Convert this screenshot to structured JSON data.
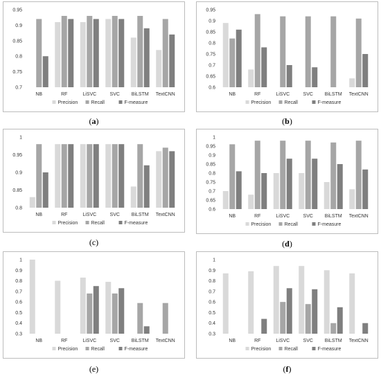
{
  "series_names": [
    "Precision",
    "Recall",
    "F-measure"
  ],
  "colors": [
    "#d9d9d9",
    "#a6a6a6",
    "#7f7f7f"
  ],
  "chart_data": [
    {
      "type": "bar",
      "label": "(a)",
      "categories": [
        "NB",
        "RF",
        "LiSVC",
        "SVC",
        "BiLSTM",
        "TextCNN"
      ],
      "ylim": [
        0.7,
        0.95
      ],
      "yticks": [
        0.7,
        0.75,
        0.8,
        0.85,
        0.9,
        0.95
      ],
      "legend": "bottom",
      "series": [
        {
          "name": "Precision",
          "values": [
            0.7,
            0.91,
            0.91,
            0.92,
            0.86,
            0.82
          ]
        },
        {
          "name": "Recall",
          "values": [
            0.92,
            0.93,
            0.93,
            0.93,
            0.93,
            0.92
          ]
        },
        {
          "name": "F-measure",
          "values": [
            0.8,
            0.92,
            0.92,
            0.92,
            0.89,
            0.87
          ]
        }
      ]
    },
    {
      "type": "bar",
      "label": "(b)",
      "categories": [
        "NB",
        "RF",
        "LiSVC",
        "SVC",
        "BiLSTM",
        "TextCNN"
      ],
      "ylim": [
        0.6,
        0.95
      ],
      "yticks": [
        0.6,
        0.65,
        0.7,
        0.75,
        0.8,
        0.85,
        0.9,
        0.95
      ],
      "legend": "bottom",
      "series": [
        {
          "name": "Precision",
          "values": [
            0.89,
            0.68,
            0.6,
            0.6,
            0.6,
            0.64
          ]
        },
        {
          "name": "Recall",
          "values": [
            0.82,
            0.93,
            0.92,
            0.92,
            0.92,
            0.91
          ]
        },
        {
          "name": "F-measure",
          "values": [
            0.86,
            0.78,
            0.7,
            0.69,
            0.6,
            0.75
          ]
        }
      ]
    },
    {
      "type": "bar",
      "label": "(c)",
      "categories": [
        "NB",
        "RF",
        "LiSVC",
        "SVC",
        "BiLSTM",
        "TextCNN"
      ],
      "ylim": [
        0.8,
        1.0
      ],
      "yticks": [
        0.8,
        0.85,
        0.9,
        0.95,
        1
      ],
      "legend": "bottom",
      "series": [
        {
          "name": "Precision",
          "values": [
            0.83,
            0.98,
            0.98,
            0.98,
            0.86,
            0.96
          ]
        },
        {
          "name": "Recall",
          "values": [
            0.98,
            0.98,
            0.98,
            0.98,
            0.98,
            0.97
          ]
        },
        {
          "name": "F-measure",
          "values": [
            0.9,
            0.98,
            0.98,
            0.98,
            0.92,
            0.96
          ]
        }
      ]
    },
    {
      "type": "bar",
      "label": "(d)",
      "categories": [
        "NB",
        "RF",
        "LiSVC",
        "SVC",
        "BiLSTM",
        "TextCNN"
      ],
      "ylim": [
        0.6,
        1.0
      ],
      "yticks": [
        0.6,
        0.65,
        0.7,
        0.75,
        0.8,
        0.85,
        0.9,
        0.95,
        1
      ],
      "legend": "bottom",
      "series": [
        {
          "name": "Precision",
          "values": [
            0.7,
            0.68,
            0.8,
            0.8,
            0.75,
            0.71
          ]
        },
        {
          "name": "Recall",
          "values": [
            0.96,
            0.98,
            0.98,
            0.98,
            0.97,
            0.98
          ]
        },
        {
          "name": "F-measure",
          "values": [
            0.81,
            0.8,
            0.88,
            0.88,
            0.85,
            0.82
          ]
        }
      ]
    },
    {
      "type": "bar",
      "label": "(e)",
      "categories": [
        "NB",
        "RF",
        "LiSVC",
        "SVC",
        "BiLSTM",
        "TextCNN"
      ],
      "ylim": [
        0.3,
        1.0
      ],
      "yticks": [
        0.3,
        0.4,
        0.5,
        0.6,
        0.7,
        0.8,
        0.9,
        1
      ],
      "legend": "bottom",
      "series": [
        {
          "name": "Precision",
          "values": [
            1.0,
            0.8,
            0.83,
            0.79,
            0.3,
            0.3
          ]
        },
        {
          "name": "Recall",
          "values": [
            0.3,
            0.3,
            0.68,
            0.68,
            0.59,
            0.59
          ]
        },
        {
          "name": "F-measure",
          "values": [
            0.3,
            0.3,
            0.75,
            0.73,
            0.37,
            0.3
          ]
        }
      ]
    },
    {
      "type": "bar",
      "label": "(f)",
      "categories": [
        "NB",
        "RF",
        "LiSVC",
        "SVC",
        "BiLSTM",
        "TextCNN"
      ],
      "ylim": [
        0.3,
        1.0
      ],
      "yticks": [
        0.3,
        0.4,
        0.5,
        0.6,
        0.7,
        0.8,
        0.9,
        1
      ],
      "legend": "bottom",
      "series": [
        {
          "name": "Precision",
          "values": [
            0.87,
            0.89,
            0.94,
            0.94,
            0.9,
            0.87
          ]
        },
        {
          "name": "Recall",
          "values": [
            0.3,
            0.3,
            0.6,
            0.58,
            0.4,
            0.3
          ]
        },
        {
          "name": "F-measure",
          "values": [
            0.3,
            0.44,
            0.73,
            0.72,
            0.55,
            0.4
          ]
        }
      ]
    }
  ]
}
